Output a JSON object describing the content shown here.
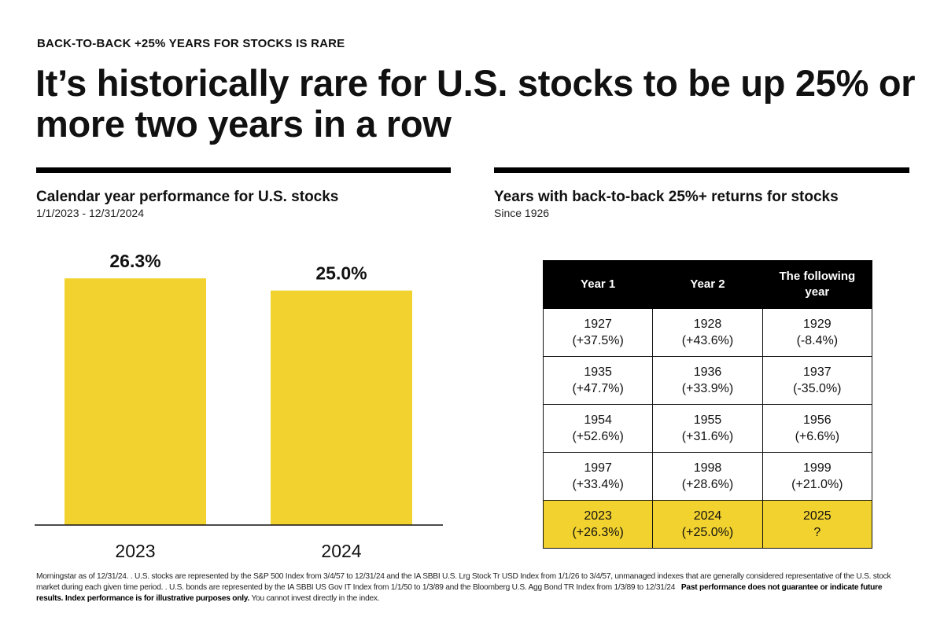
{
  "header": {
    "eyebrow": "BACK-TO-BACK +25% YEARS FOR STOCKS IS RARE",
    "headline": "It’s historically rare for U.S. stocks to be up 25% or more two years in a row"
  },
  "left_panel": {
    "title": "Calendar year performance for U.S. stocks",
    "subtitle": "1/1/2023 - 12/31/2024"
  },
  "right_panel": {
    "title": "Years with back-to-back 25%+ returns for stocks",
    "subtitle": "Since 1926"
  },
  "colors": {
    "accent": "#f2d22e",
    "text": "#111111",
    "header_bg": "#000000"
  },
  "chart_data": [
    {
      "type": "bar",
      "categories": [
        "2023",
        "2024"
      ],
      "values": [
        26.3,
        25.0
      ],
      "data_labels": [
        "26.3%",
        "25.0%"
      ],
      "title": "Calendar year performance for U.S. stocks",
      "subtitle": "1/1/2023 - 12/31/2024",
      "xlabel": "",
      "ylabel": "",
      "ylim": [
        0,
        30
      ],
      "grid": false,
      "color": "#f2d22e"
    },
    {
      "type": "table",
      "title": "Years with back-to-back 25%+ returns for stocks",
      "subtitle": "Since 1926",
      "columns": [
        "Year 1",
        "Year 2",
        "The following year"
      ],
      "rows": [
        [
          {
            "year": "1927",
            "ret": "(+37.5%)"
          },
          {
            "year": "1928",
            "ret": "(+43.6%)"
          },
          {
            "year": "1929",
            "ret": "(-8.4%)"
          }
        ],
        [
          {
            "year": "1935",
            "ret": "(+47.7%)"
          },
          {
            "year": "1936",
            "ret": "(+33.9%)"
          },
          {
            "year": "1937",
            "ret": "(-35.0%)"
          }
        ],
        [
          {
            "year": "1954",
            "ret": "(+52.6%)"
          },
          {
            "year": "1955",
            "ret": "(+31.6%)"
          },
          {
            "year": "1956",
            "ret": "(+6.6%)"
          }
        ],
        [
          {
            "year": "1997",
            "ret": "(+33.4%)"
          },
          {
            "year": "1998",
            "ret": "(+28.6%)"
          },
          {
            "year": "1999",
            "ret": "(+21.0%)"
          }
        ],
        [
          {
            "year": "2023",
            "ret": "(+26.3%)"
          },
          {
            "year": "2024",
            "ret": "(+25.0%)"
          },
          {
            "year": "2025",
            "ret": "?"
          }
        ]
      ],
      "highlighted_row": 4
    }
  ],
  "footnote": {
    "text": "Morningstar as of 12/31/24. . U.S. stocks are represented by the S&P 500 Index from 3/4/57 to 12/31/24 and the IA SBBI U.S. Lrg Stock Tr USD Index from 1/1/26 to 3/4/57, unmanaged indexes that are generally considered representative of the U.S. stock market during each given time period. . U.S. bonds are represented by the IA SBBI US Gov IT Index from 1/1/50 to 1/3/89 and the Bloomberg U.S. Agg Bond TR Index from 1/3/89 to 12/31/24",
    "bold": "Past performance does not guarantee or indicate future results. Index performance is for illustrative purposes only.",
    "tail": "You cannot invest directly in the index."
  }
}
